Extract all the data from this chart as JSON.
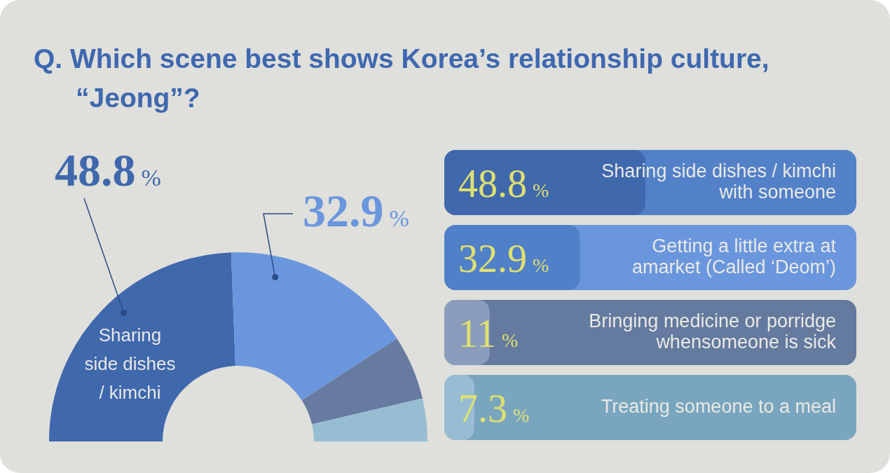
{
  "chart_data": [
    {
      "type": "donut",
      "title": "Q. Which scene best shows Korea’s relationship culture, “Jeong”?",
      "categories": [
        "Sharing side dishes / kimchi",
        null,
        null,
        null
      ],
      "values": [
        48.8,
        32.9,
        11,
        7.3
      ],
      "colors": [
        "#3f68ad",
        "#6a96dd",
        "#677ba0",
        "#97bdd3"
      ],
      "value_labels": [
        "48.8%",
        "32.9%",
        null,
        null
      ]
    },
    {
      "type": "bar",
      "orientation": "horizontal",
      "categories": [
        "Sharing side dishes / kimchi with someone",
        "Getting a little extra at amarket (Called ‘Deom’)",
        "Bringing medicine or porridge whensomeone is sick",
        "Treating someone to a meal"
      ],
      "values": [
        48.8,
        32.9,
        11,
        7.3
      ],
      "colors": [
        "#3f68ad",
        "#5080c8",
        "#8a9dbc",
        "#98bdd3"
      ],
      "value_labels": [
        "48.8%",
        "32.9%",
        "11%",
        "7.3%"
      ],
      "xlim": [
        0,
        100
      ],
      "tick_labels": "y"
    }
  ]
}
